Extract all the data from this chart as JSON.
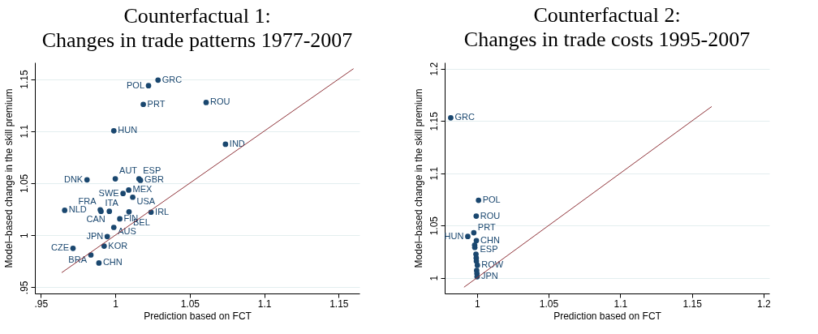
{
  "chart_data": [
    {
      "type": "scatter",
      "title": "Counterfactual 1:",
      "subtitle": "Changes in trade patterns 1977-2007",
      "xlabel": "Prediction based on FCT",
      "ylabel": "Model–based change in the skill premium",
      "xlim": [
        0.946,
        1.164
      ],
      "ylim": [
        0.944,
        1.166
      ],
      "xticks": [
        {
          "value": 0.95,
          "label": ".95"
        },
        1,
        1.05,
        1.1,
        1.15
      ],
      "yticks": [
        {
          "value": 0.95,
          "label": ".95"
        },
        1,
        1.05,
        1.1,
        1.15
      ],
      "grid": "y",
      "series": [
        {
          "marker": "circle",
          "color": "#1a476f",
          "x": [
            1.0287,
            1.0223,
            1.0188,
            1.061,
            0.999,
            1.074,
            0.981,
            1.0,
            1.0159,
            1.0169,
            1.009,
            1.0052,
            1.0117,
            0.966,
            0.9899,
            0.9904,
            0.996,
            1.0092,
            1.024,
            1.003,
            0.999,
            0.9946,
            0.9925,
            0.9716,
            0.9836,
            0.989
          ],
          "values": [
            1.149,
            1.1437,
            1.1257,
            1.1275,
            1.1003,
            1.0874,
            1.0532,
            1.0542,
            1.0542,
            1.0527,
            1.0434,
            1.0401,
            1.0365,
            1.0239,
            1.0244,
            1.0229,
            1.0229,
            1.0224,
            1.0221,
            1.0157,
            1.0075,
            0.9987,
            0.9895,
            0.9874,
            0.981,
            0.9733
          ],
          "value_labels": [
            "GRC",
            "POL",
            "PRT",
            "ROU",
            "HUN",
            "IND",
            "DNK",
            "AUT",
            "ESP",
            "GBR",
            "MEX",
            "SWE",
            "USA",
            "NLD",
            "FRA",
            "ITA",
            "CAN",
            "BEL",
            "IRL",
            "FIN",
            "AUS",
            "JPN",
            "KOR",
            "CZE",
            "BRA",
            "CHN"
          ]
        },
        {
          "type": "line",
          "color": "#90353b",
          "x": [
            0.964,
            1.16
          ],
          "values": [
            0.964,
            1.16
          ]
        }
      ]
    },
    {
      "type": "scatter",
      "title": "Counterfactual 2:",
      "subtitle": "Changes in trade costs 1995-2007",
      "xlabel": "Prediction based on FCT",
      "ylabel": "Model–based change in the skill premium",
      "xlim": [
        0.9775,
        1.204
      ],
      "ylim": [
        0.985,
        1.206
      ],
      "xticks": [
        1,
        1.05,
        1.1,
        1.15,
        1.2
      ],
      "yticks": [
        1,
        1.05,
        1.1,
        1.15,
        1.2
      ],
      "grid": "y",
      "series": [
        {
          "marker": "circle",
          "color": "#1a476f",
          "x": [
            0.9817,
            1.0011,
            0.9995,
            0.9978,
            0.9936,
            0.9996,
            0.9984,
            0.9985,
            0.9993,
            0.9995,
            0.9996,
            1.0003,
            0.9998,
            1.0,
            1.0001
          ],
          "values": [
            1.153,
            1.0741,
            1.059,
            1.0431,
            1.0395,
            1.0356,
            1.0313,
            1.029,
            1.0226,
            1.019,
            1.016,
            1.012,
            1.007,
            1.004,
            1.001
          ],
          "value_labels": [
            "GRC",
            "POL",
            "ROU",
            "PRT",
            "HUN",
            "CHN",
            null,
            null,
            "ESP",
            null,
            null,
            "ROW",
            null,
            null,
            "JPN"
          ]
        },
        {
          "type": "line",
          "color": "#90353b",
          "x": [
            0.991,
            1.1638
          ],
          "values": [
            0.991,
            1.1638
          ]
        }
      ]
    }
  ]
}
